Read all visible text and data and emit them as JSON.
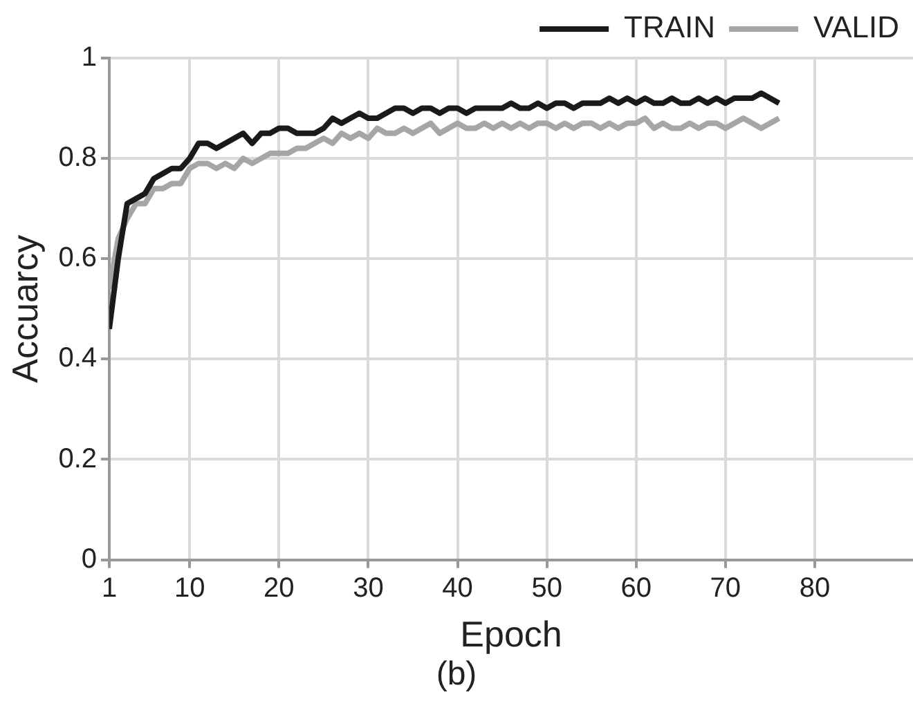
{
  "chart_data": {
    "type": "line",
    "xlabel": "Epoch",
    "ylabel": "Accuarcy",
    "annotations": [
      "(b)"
    ],
    "x": [
      1,
      2,
      3,
      4,
      5,
      6,
      7,
      8,
      9,
      10,
      11,
      12,
      13,
      14,
      15,
      16,
      17,
      18,
      19,
      20,
      21,
      22,
      23,
      24,
      25,
      26,
      27,
      28,
      29,
      30,
      31,
      32,
      33,
      34,
      35,
      36,
      37,
      38,
      39,
      40,
      41,
      42,
      43,
      44,
      45,
      46,
      47,
      48,
      49,
      50,
      51,
      52,
      53,
      54,
      55,
      56,
      57,
      58,
      59,
      60,
      61,
      62,
      63,
      64,
      65,
      66,
      67,
      68,
      69,
      70,
      71,
      72,
      73,
      74,
      75,
      76
    ],
    "series": [
      {
        "name": "TRAIN",
        "color": "#1a1a1a",
        "values": [
          0.46,
          0.6,
          0.71,
          0.72,
          0.73,
          0.76,
          0.77,
          0.78,
          0.78,
          0.8,
          0.83,
          0.83,
          0.82,
          0.83,
          0.84,
          0.85,
          0.83,
          0.85,
          0.85,
          0.86,
          0.86,
          0.85,
          0.85,
          0.85,
          0.86,
          0.88,
          0.87,
          0.88,
          0.89,
          0.88,
          0.88,
          0.89,
          0.9,
          0.9,
          0.89,
          0.9,
          0.9,
          0.89,
          0.9,
          0.9,
          0.89,
          0.9,
          0.9,
          0.9,
          0.9,
          0.91,
          0.9,
          0.9,
          0.91,
          0.9,
          0.91,
          0.91,
          0.9,
          0.91,
          0.91,
          0.91,
          0.92,
          0.91,
          0.92,
          0.91,
          0.92,
          0.91,
          0.91,
          0.92,
          0.91,
          0.91,
          0.92,
          0.91,
          0.92,
          0.91,
          0.92,
          0.92,
          0.92,
          0.93,
          0.92,
          0.91
        ]
      },
      {
        "name": "VALID",
        "color": "#a6a6a6",
        "values": [
          0.54,
          0.64,
          0.68,
          0.71,
          0.71,
          0.74,
          0.74,
          0.75,
          0.75,
          0.78,
          0.79,
          0.79,
          0.78,
          0.79,
          0.78,
          0.8,
          0.79,
          0.8,
          0.81,
          0.81,
          0.81,
          0.82,
          0.82,
          0.83,
          0.84,
          0.83,
          0.85,
          0.84,
          0.85,
          0.84,
          0.86,
          0.85,
          0.85,
          0.86,
          0.85,
          0.86,
          0.87,
          0.85,
          0.86,
          0.87,
          0.86,
          0.86,
          0.87,
          0.86,
          0.87,
          0.86,
          0.87,
          0.86,
          0.87,
          0.87,
          0.86,
          0.87,
          0.86,
          0.87,
          0.87,
          0.86,
          0.87,
          0.86,
          0.87,
          0.87,
          0.88,
          0.86,
          0.87,
          0.86,
          0.86,
          0.87,
          0.86,
          0.87,
          0.87,
          0.86,
          0.87,
          0.88,
          0.87,
          0.86,
          0.87,
          0.88
        ]
      }
    ],
    "xlim": [
      1,
      91
    ],
    "xticks": [
      1,
      10,
      20,
      30,
      40,
      50,
      60,
      70,
      80
    ],
    "ylim": [
      0,
      1
    ],
    "yticks": [
      0,
      0.2,
      0.4,
      0.6,
      0.8,
      1
    ],
    "grid": true,
    "legend": "top right",
    "marker": "none",
    "line_style": "solid"
  }
}
